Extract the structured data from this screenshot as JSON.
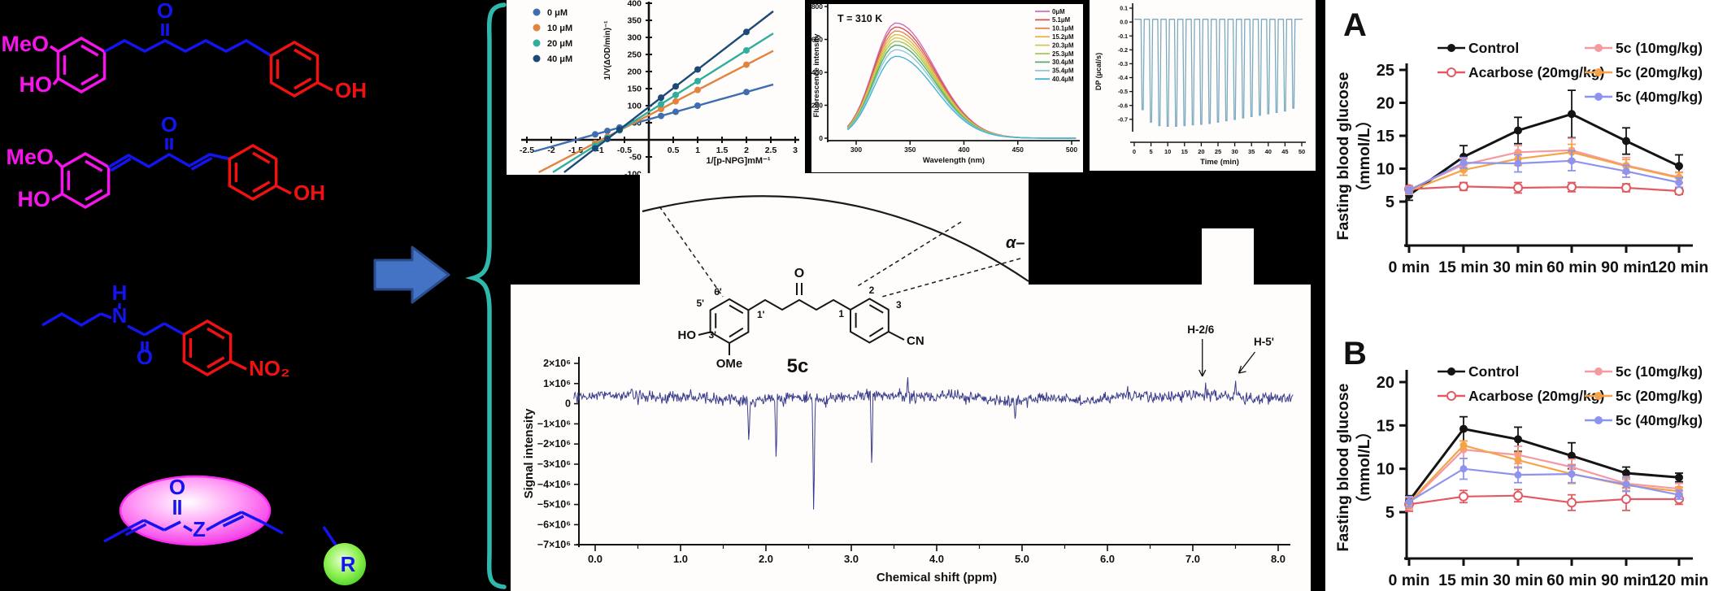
{
  "colors": {
    "background": "#000000",
    "magenta_struct": "#f714ea",
    "blue_struct": "#1414f0",
    "red_struct": "#f01212",
    "brace_teal": "#2fb9ad",
    "arrow_blue": "#4472c4",
    "nmr_trace": "#3a3d8c",
    "itc_trace": "#7aa9c0"
  },
  "molecules": {
    "m1": {
      "meo": "MeO",
      "ho": "HO",
      "o": "O",
      "oh": "OH"
    },
    "m2": {
      "meo": "MeO",
      "ho": "HO",
      "o": "O",
      "oh": "OH"
    },
    "m3": {
      "h": "H",
      "n": "N",
      "o": "O",
      "no2": "NO₂"
    },
    "m4": {
      "o": "O",
      "z": "Z",
      "r": "R"
    }
  },
  "structure_5c": {
    "labels": {
      "c6p": "6'",
      "c5p": "5'",
      "c1p": "1'",
      "c3p": "3'",
      "ho": "HO",
      "ome": "OMe",
      "o": "O",
      "n2": "2",
      "n1": "1",
      "n3": "3",
      "cn": "CN",
      "name": "5c",
      "alpha": "α–"
    }
  },
  "chart_data": [
    {
      "id": "lineweaver_burk",
      "type": "scatter",
      "xlabel": "1/[p-NPG]mM⁻¹",
      "ylabel": "1/V(ΔOD/min)⁻¹",
      "xlim": [
        -2.5,
        3
      ],
      "ylim": [
        -100,
        400
      ],
      "xticks": [
        -2.5,
        -2,
        -1.5,
        -1,
        -0.5,
        0.5,
        1,
        1.5,
        2,
        2.5,
        3
      ],
      "yticks": [
        -100,
        -50,
        50,
        100,
        150,
        200,
        250,
        300,
        350,
        400
      ],
      "point_x": [
        -1.1,
        -0.85,
        -0.6,
        0.25,
        0.55,
        1,
        2
      ],
      "series": [
        {
          "name": "0 μM",
          "color": "#3e6db0",
          "slope": 40,
          "intercept": 60
        },
        {
          "name": "10 μM",
          "color": "#e08440",
          "slope": 74,
          "intercept": 72
        },
        {
          "name": "20 μM",
          "color": "#2fae9e",
          "slope": 90,
          "intercept": 82
        },
        {
          "name": "40 μM",
          "color": "#1d4976",
          "slope": 110,
          "intercept": 96
        }
      ]
    },
    {
      "id": "fluorescence_quenching",
      "type": "line",
      "title": "T = 310 K",
      "xlabel": "Wavelength (nm)",
      "ylabel": "Fluorescence intensity",
      "xlim": [
        290,
        510
      ],
      "ylim": [
        0,
        800
      ],
      "xticks": [
        300,
        350,
        400,
        450,
        500
      ],
      "yticks": [
        0,
        200,
        400,
        600,
        800
      ],
      "peak_nm": 337,
      "series": [
        {
          "name": "0μM",
          "peak": 700,
          "color": "#cf6eb8"
        },
        {
          "name": "5.1μM",
          "peak": 676,
          "color": "#d44f55"
        },
        {
          "name": "10.1μM",
          "peak": 652,
          "color": "#e2874f"
        },
        {
          "name": "15.2μM",
          "peak": 630,
          "color": "#e3b84e"
        },
        {
          "name": "20.3μM",
          "peak": 610,
          "color": "#cfcb52"
        },
        {
          "name": "25.3μM",
          "peak": 590,
          "color": "#a4c94f"
        },
        {
          "name": "30.4μM",
          "peak": 566,
          "color": "#4fae6e"
        },
        {
          "name": "35.4μM",
          "peak": 538,
          "color": "#8fc9d8"
        },
        {
          "name": "40.4μM",
          "peak": 498,
          "color": "#45b4d6"
        }
      ]
    },
    {
      "id": "itc_thermogram",
      "type": "line",
      "xlabel": "Time (min)",
      "ylabel": "DP (μcal/s)",
      "xlim": [
        0,
        52
      ],
      "ylim": [
        -0.8,
        0.15
      ],
      "xticks": [
        0,
        5,
        10,
        15,
        20,
        25,
        30,
        35,
        40,
        45,
        50
      ],
      "yticks": [
        0.1,
        0.0,
        -0.1,
        -0.2,
        -0.3,
        -0.4,
        -0.5,
        -0.6,
        -0.7
      ],
      "baseline": 0.02,
      "injection_start_min": 2.5,
      "injection_interval_min": 2.5,
      "color": "#7aa9c0",
      "spike_depths": [
        -0.63,
        -0.72,
        -0.745,
        -0.75,
        -0.75,
        -0.745,
        -0.74,
        -0.735,
        -0.73,
        -0.72,
        -0.71,
        -0.7,
        -0.69,
        -0.68,
        -0.67,
        -0.66,
        -0.65,
        -0.64,
        -0.62
      ]
    },
    {
      "id": "std_nmr",
      "type": "line",
      "xlabel": "Chemical shift (ppm)",
      "ylabel": "Signal intensity",
      "xlim": [
        -0.3,
        8.2
      ],
      "xticks": [
        0,
        1,
        2,
        3,
        4,
        5,
        6,
        7,
        8
      ],
      "ytick_values": [
        2,
        1,
        0,
        -1,
        -2,
        -3,
        -4,
        -5,
        -6,
        -7
      ],
      "ytick_unit": "×10⁶",
      "color": "#3a3d8c",
      "noise_center_e6": 0.3,
      "noise_amp_e6": 0.35,
      "negative_peaks": [
        {
          "ppm": 1.8,
          "value_e6": -2.05
        },
        {
          "ppm": 2.12,
          "value_e6": -3.0
        },
        {
          "ppm": 2.56,
          "value_e6": -6.0
        },
        {
          "ppm": 3.24,
          "value_e6": -3.35
        },
        {
          "ppm": 4.92,
          "value_e6": -0.85
        }
      ],
      "positive_peaks": [
        {
          "ppm": 3.66,
          "value_e6": 1.5
        },
        {
          "ppm": 7.15,
          "value_e6": 1.05,
          "label": "H-2/6"
        },
        {
          "ppm": 7.5,
          "value_e6": 1.3,
          "label": "H-5'"
        }
      ]
    },
    {
      "id": "glucose_panel_A",
      "type": "line",
      "panel_label": "A",
      "ylabel_line1": "Fasting blood glucose",
      "ylabel_line2": "（mmol/L）",
      "categories": [
        "0 min",
        "15 min",
        "30 min",
        "60 min",
        "90 min",
        "120 min"
      ],
      "ylim": [
        5,
        25
      ],
      "yticks": [
        5,
        10,
        15,
        20,
        25
      ],
      "series": [
        {
          "name": "Control",
          "color": "#141414",
          "marker": "filled",
          "values": [
            6.0,
            11.8,
            15.8,
            18.3,
            14.2,
            10.4
          ],
          "errors": [
            0.8,
            1.7,
            2.0,
            3.6,
            2.0,
            1.7
          ]
        },
        {
          "name": "Acarbose (20mg/kg)",
          "color": "#e25b62",
          "marker": "open",
          "values": [
            6.9,
            7.3,
            7.1,
            7.2,
            7.1,
            6.6
          ],
          "errors": [
            0.5,
            0.6,
            0.8,
            0.7,
            0.6,
            0.5
          ]
        },
        {
          "name": "5c (10mg/kg)",
          "color": "#f49aa0",
          "marker": "filled",
          "values": [
            6.8,
            10.6,
            12.5,
            12.8,
            10.5,
            8.7
          ],
          "errors": [
            0.5,
            0.9,
            1.0,
            1.8,
            1.2,
            0.8
          ]
        },
        {
          "name": "5c (20mg/kg)",
          "color": "#f6a348",
          "marker": "filled",
          "values": [
            6.6,
            9.8,
            11.5,
            12.5,
            10.4,
            8.6
          ],
          "errors": [
            0.5,
            0.8,
            1.0,
            1.2,
            1.0,
            0.8
          ]
        },
        {
          "name": "5c (40mg/kg)",
          "color": "#8e93ee",
          "marker": "filled",
          "values": [
            6.7,
            10.9,
            10.8,
            11.2,
            9.6,
            7.9
          ],
          "errors": [
            0.5,
            0.8,
            1.3,
            1.5,
            0.9,
            0.7
          ]
        }
      ]
    },
    {
      "id": "glucose_panel_B",
      "type": "line",
      "panel_label": "B",
      "ylabel_line1": "Fasting blood glucose",
      "ylabel_line2": "（mmol/L）",
      "categories": [
        "0 min",
        "15 min",
        "30 min",
        "60 min",
        "90 min",
        "120 min"
      ],
      "ylim": [
        5,
        20
      ],
      "yticks": [
        5,
        10,
        15,
        20
      ],
      "series": [
        {
          "name": "Control",
          "color": "#141414",
          "marker": "filled",
          "values": [
            6.3,
            14.6,
            13.4,
            11.5,
            9.5,
            9.0
          ],
          "errors": [
            0.6,
            1.4,
            1.4,
            1.5,
            0.7,
            0.5
          ]
        },
        {
          "name": "Acarbose (20mg/kg)",
          "color": "#e25b62",
          "marker": "open",
          "values": [
            5.9,
            6.8,
            6.9,
            6.1,
            6.5,
            6.5
          ],
          "errors": [
            0.8,
            0.7,
            0.7,
            0.9,
            1.3,
            0.6
          ]
        },
        {
          "name": "5c (10mg/kg)",
          "color": "#f49aa0",
          "marker": "filled",
          "values": [
            6.0,
            12.2,
            11.6,
            10.2,
            8.3,
            7.7
          ],
          "errors": [
            0.7,
            1.0,
            1.0,
            0.9,
            0.8,
            0.6
          ]
        },
        {
          "name": "5c (20mg/kg)",
          "color": "#f6a348",
          "marker": "filled",
          "values": [
            6.1,
            12.7,
            11.0,
            9.4,
            8.1,
            7.4
          ],
          "errors": [
            0.6,
            0.5,
            0.9,
            1.1,
            0.7,
            0.5
          ]
        },
        {
          "name": "5c (40mg/kg)",
          "color": "#8e93ee",
          "marker": "filled",
          "values": [
            6.2,
            10.0,
            9.3,
            9.4,
            8.2,
            7.0
          ],
          "errors": [
            0.6,
            1.2,
            0.9,
            1.0,
            0.8,
            0.5
          ]
        }
      ]
    }
  ]
}
